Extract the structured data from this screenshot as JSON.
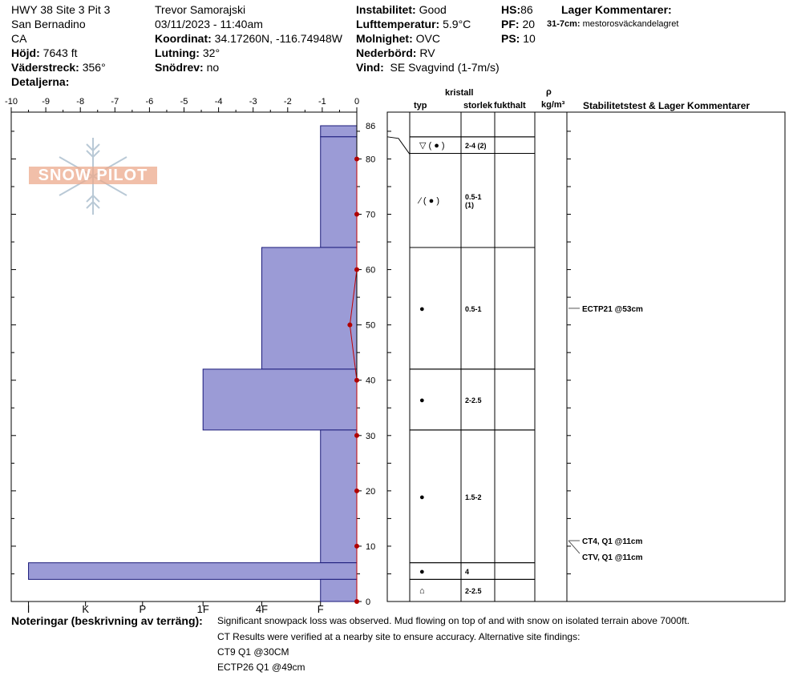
{
  "header": {
    "site": "HWY 38 Site 3 Pit 3",
    "region": "San Bernadino",
    "state": "CA",
    "elev_label": "Höjd:",
    "elev_value": "7643 ft",
    "aspect_label": "Väderstreck:",
    "aspect_value": "356°",
    "details_label": "Detaljerna:",
    "observer": "Trevor Samorajski",
    "datetime": "03/11/2023 - 11:40am",
    "coord_label": "Koordinat:",
    "coord_value": "34.17260N, -116.74948W",
    "slope_label": "Lutning:",
    "slope_value": "32°",
    "drift_label": "Snödrev:",
    "drift_value": "no",
    "instab_label": "Instabilitet:",
    "instab_value": "Good",
    "airtemp_label": "Lufttemperatur:",
    "airtemp_value": "5.9°C",
    "sky_label": "Molnighet:",
    "sky_value": "OVC",
    "precip_label": "Nederbörd:",
    "precip_value": "RV",
    "wind_label": "Vind:",
    "wind_value": "SE Svagvind (1-7m/s)",
    "hs_label": "HS:",
    "hs_value": "86",
    "pf_label": "PF:",
    "pf_value": "20",
    "ps_label": "PS:",
    "ps_value": "10",
    "layer_comm_title": "Lager Kommentarer:",
    "layer_comm_key": "31-7cm:",
    "layer_comm_value": "mestorosväckandelagret"
  },
  "logo_text": "SNOW PILOT",
  "columns": {
    "crystal": "kristall",
    "type": "typ",
    "size": "storlek",
    "moisture": "fukthalt",
    "rho": "ρ",
    "density_unit": "kg/m³",
    "stability": "Stabilitetstest & Lager Kommentarer"
  },
  "notes": {
    "label": "Noteringar (beskrivning av terräng):",
    "lines": [
      "Significant snowpack loss was observed.  Mud flowing on top of and with snow on isolated terrain above 7000ft.",
      "CT Results were verified at a nearby site to ensure accuracy.  Alternative site findings:",
      "CT9 Q1 @30CM",
      "ECTP26 Q1 @49cm"
    ]
  },
  "chart_data": {
    "type": "bar",
    "temp_axis": {
      "ticks": [
        "-10",
        "-9",
        "-8",
        "-7",
        "-6",
        "-5",
        "-4",
        "-3",
        "-2",
        "-1",
        "0"
      ],
      "range": [
        -10,
        0
      ]
    },
    "hardness_axis": {
      "ticks": [
        "I",
        "K",
        "P",
        "1F",
        "4F",
        "F"
      ]
    },
    "depth_axis": {
      "ticks": [
        "0",
        "10",
        "20",
        "30",
        "40",
        "50",
        "60",
        "70",
        "80",
        "86"
      ],
      "range": [
        0,
        86
      ]
    },
    "hardness_layers": [
      {
        "top": 86,
        "bottom": 84,
        "hardness": -1.05
      },
      {
        "top": 84,
        "bottom": 64,
        "hardness": -1.05
      },
      {
        "top": 64,
        "bottom": 42,
        "hardness": -2.75
      },
      {
        "top": 42,
        "bottom": 31,
        "hardness": -4.45
      },
      {
        "top": 31,
        "bottom": 7,
        "hardness": -1.05
      },
      {
        "top": 7,
        "bottom": 4,
        "hardness": -9.5
      },
      {
        "top": 4,
        "bottom": 0,
        "hardness": -1.05
      }
    ],
    "temperature_profile": [
      {
        "depth": 80,
        "temp": 0
      },
      {
        "depth": 70,
        "temp": 0
      },
      {
        "depth": 60,
        "temp": 0
      },
      {
        "depth": 50,
        "temp": -0.2
      },
      {
        "depth": 40,
        "temp": 0
      },
      {
        "depth": 30,
        "temp": 0
      },
      {
        "depth": 20,
        "temp": 0
      },
      {
        "depth": 10,
        "temp": 0
      },
      {
        "depth": 0,
        "temp": 0
      }
    ],
    "layers": [
      {
        "top": 86,
        "bottom": 84,
        "symbol": "",
        "size": ""
      },
      {
        "top": 84,
        "bottom": 81,
        "symbol": "▽ ( ● )",
        "size": "2-4 (2)"
      },
      {
        "top": 81,
        "bottom": 64,
        "symbol": "∕ ( ● )",
        "size": "0.5-1\n(1)"
      },
      {
        "top": 64,
        "bottom": 42,
        "symbol": "●",
        "size": "0.5-1"
      },
      {
        "top": 42,
        "bottom": 31,
        "symbol": "●",
        "size": "2-2.5"
      },
      {
        "top": 31,
        "bottom": 7,
        "symbol": "●",
        "size": "1.5-2"
      },
      {
        "top": 7,
        "bottom": 4,
        "symbol": "●",
        "size": "4"
      },
      {
        "top": 4,
        "bottom": 0,
        "symbol": "⌂",
        "size": "2-2.5"
      }
    ],
    "stability_tests": [
      {
        "depth": 53,
        "label": "ECTP21 @53cm"
      },
      {
        "depth": 11,
        "label": "CT4, Q1 @11cm"
      },
      {
        "depth": 11,
        "label": "CTV, Q1 @11cm"
      }
    ]
  }
}
